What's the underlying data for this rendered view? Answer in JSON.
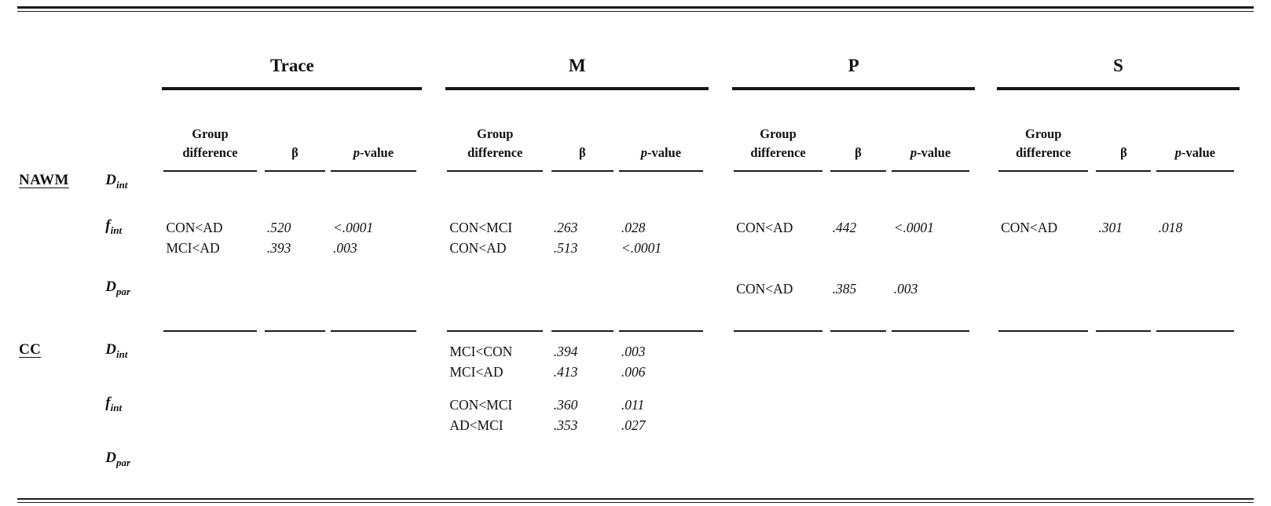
{
  "table": {
    "groups": [
      {
        "label": "Trace"
      },
      {
        "label": "M"
      },
      {
        "label": "P"
      },
      {
        "label": "S"
      }
    ],
    "subheader": {
      "group_diff_line1": "Group",
      "group_diff_line2": "difference",
      "beta": "β",
      "p_italic": "p",
      "p_suffix": "-value"
    },
    "regions": {
      "nawm": "NAWM",
      "cc": "CC"
    },
    "metrics": {
      "d_int_main": "D",
      "d_int_sub": "int",
      "f_int_main": "f",
      "f_int_sub": "int",
      "d_par_main": "D",
      "d_par_sub": "par"
    },
    "data": {
      "nawm": {
        "fint": {
          "trace": [
            {
              "gd": "CON<AD",
              "beta": ".520",
              "p": "<.0001"
            },
            {
              "gd": "MCI<AD",
              "beta": ".393",
              "p": ".003"
            }
          ],
          "m": [
            {
              "gd": "CON<MCI",
              "beta": ".263",
              "p": ".028"
            },
            {
              "gd": "CON<AD",
              "beta": ".513",
              "p": "<.0001"
            }
          ],
          "p": [
            {
              "gd": "CON<AD",
              "beta": ".442",
              "p": "<.0001"
            }
          ],
          "s": [
            {
              "gd": "CON<AD",
              "beta": ".301",
              "p": ".018"
            }
          ]
        },
        "dpar": {
          "p": [
            {
              "gd": "CON<AD",
              "beta": ".385",
              "p": ".003"
            }
          ]
        }
      },
      "cc": {
        "dint": {
          "m": [
            {
              "gd": "MCI<CON",
              "beta": ".394",
              "p": ".003"
            },
            {
              "gd": "MCI<AD",
              "beta": ".413",
              "p": ".006"
            }
          ]
        },
        "fint": {
          "m": [
            {
              "gd": "CON<MCI",
              "beta": ".360",
              "p": ".011"
            },
            {
              "gd": "AD<MCI",
              "beta": ".353",
              "p": ".027"
            }
          ]
        }
      }
    }
  }
}
